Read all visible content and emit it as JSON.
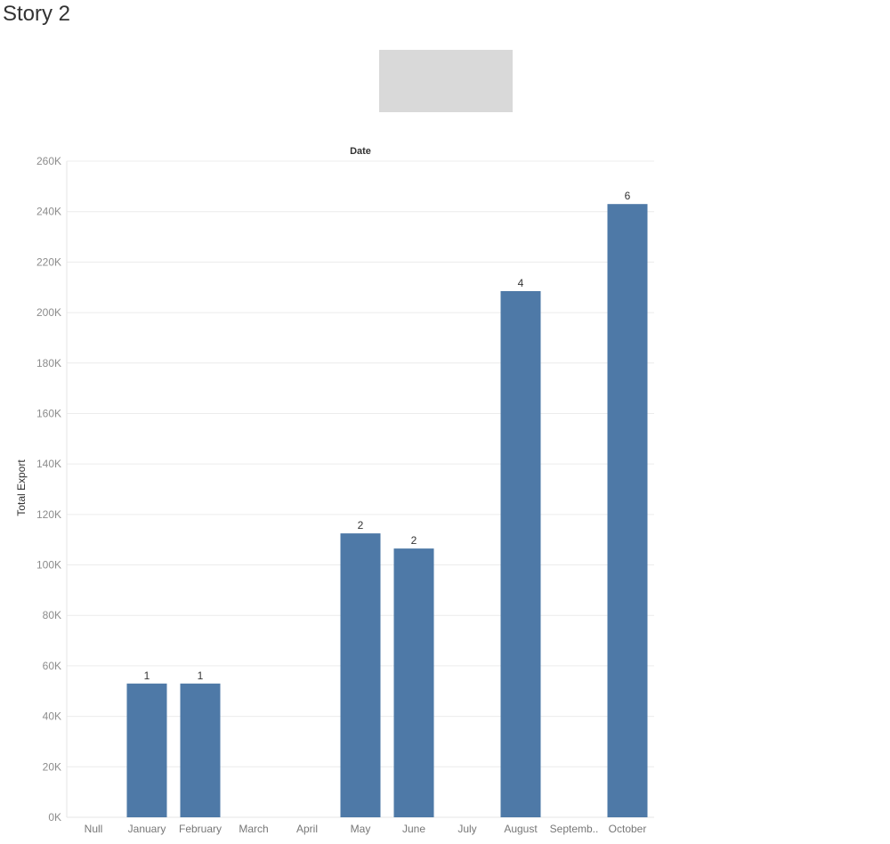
{
  "story": {
    "title": "Story 2"
  },
  "chart_data": {
    "type": "bar",
    "column_header": "Date",
    "ylabel": "Total Export",
    "categories": [
      "Null",
      "January",
      "February",
      "March",
      "April",
      "May",
      "June",
      "July",
      "August",
      "Septemb..",
      "October"
    ],
    "values": [
      null,
      53000,
      53000,
      null,
      null,
      112500,
      106500,
      null,
      208500,
      null,
      243000
    ],
    "data_labels": [
      "",
      "1",
      "1",
      "",
      "",
      "2",
      "2",
      "",
      "4",
      "",
      "6"
    ],
    "ylim": [
      0,
      260000
    ],
    "yticks": [
      0,
      20000,
      40000,
      60000,
      80000,
      100000,
      120000,
      140000,
      160000,
      180000,
      200000,
      220000,
      240000,
      260000
    ],
    "ytick_labels": [
      "0K",
      "20K",
      "40K",
      "60K",
      "80K",
      "100K",
      "120K",
      "140K",
      "160K",
      "180K",
      "200K",
      "220K",
      "240K",
      "260K"
    ],
    "grid": true,
    "legend": "none",
    "colors": {
      "bar": "#4e79a7",
      "grid": "#ececec"
    }
  }
}
